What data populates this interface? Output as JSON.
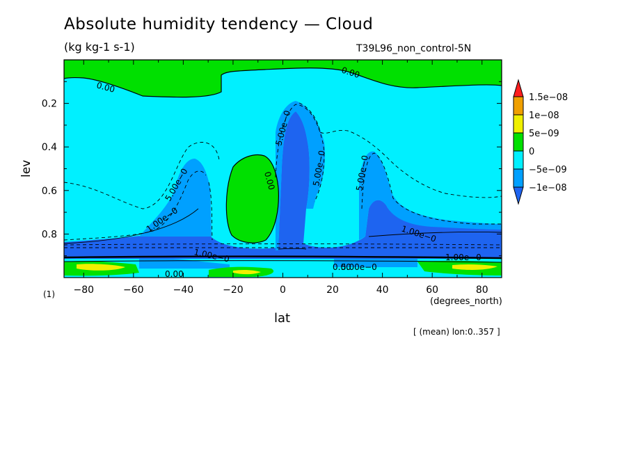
{
  "chart_data": {
    "type": "heatmap",
    "title": "Absolute humidity tendency — Cloud",
    "units": "(kg kg-1 s-1)",
    "run_label": "T39L96_non_control-5N",
    "xlabel": "lat",
    "ylabel": "lev",
    "x_unit": "(degrees_north)",
    "panel_label": "(1)",
    "mean_note": "[ (mean) lon:0..357 ]",
    "xlim": [
      -87.9,
      87.9
    ],
    "ylim": [
      1.0,
      0.0
    ],
    "x_ticks": [
      -80,
      -60,
      -40,
      -20,
      0,
      20,
      40,
      60,
      80
    ],
    "x_tick_labels": [
      "−80",
      "−60",
      "−40",
      "−20",
      "0",
      "20",
      "40",
      "60",
      "80"
    ],
    "y_ticks": [
      0.2,
      0.4,
      0.6,
      0.8
    ],
    "y_tick_labels": [
      "0.2",
      "0.4",
      "0.6",
      "0.8"
    ],
    "colorbar": {
      "boundaries": [
        -1e-08,
        -5e-09,
        0,
        5e-09,
        1e-08,
        1.5e-08
      ],
      "labels": [
        "−1e−08",
        "−5e−09",
        "0",
        "5e−09",
        "1e−08",
        "1.5e−08"
      ],
      "colors": [
        "#1e64f0",
        "#00a0ff",
        "#00f0ff",
        "#00e000",
        "#f0f000",
        "#f0a000",
        "#ff1e1e"
      ]
    },
    "contour_labels": [
      "0.00",
      "0.00",
      "0.00",
      "0.00",
      "0.00",
      "5.00e−0",
      "5.00e−0",
      "5.00e−0",
      "5.00e−0",
      "5.00e−0",
      "1.00e−0",
      "1.00e−0",
      "1.00e−0",
      "1.00e−0"
    ],
    "grid": false
  }
}
